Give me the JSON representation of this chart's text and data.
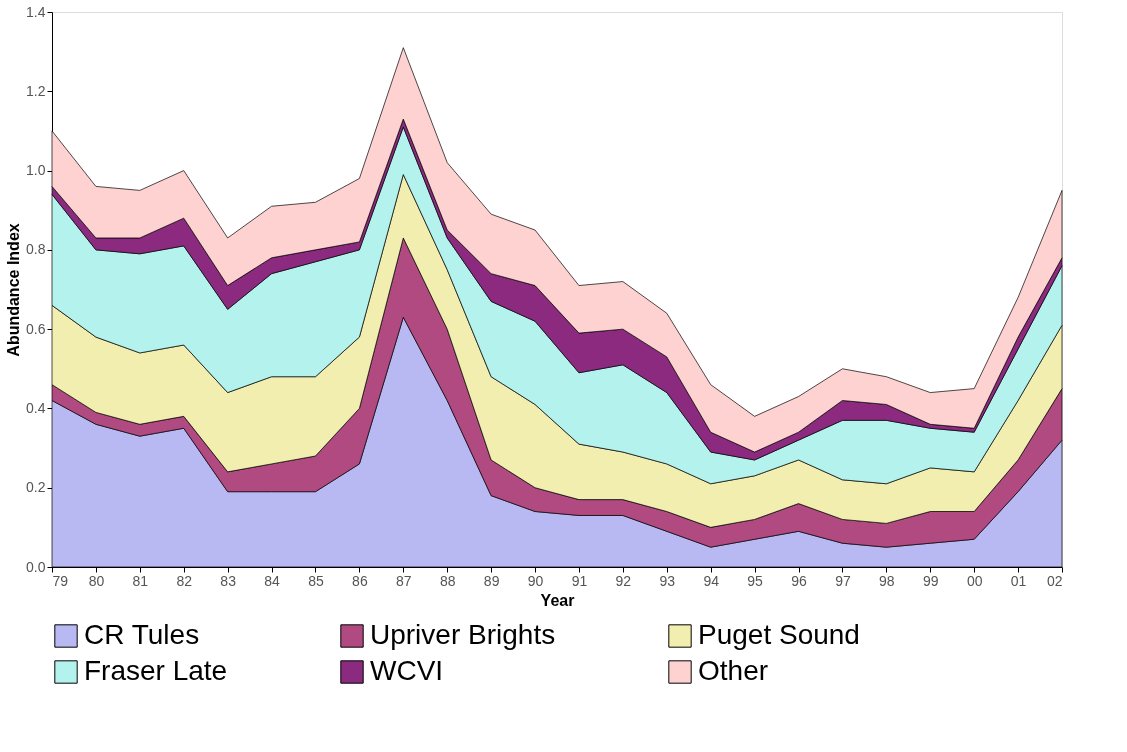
{
  "chart_data": {
    "type": "area",
    "stacked": true,
    "xlabel": "Year",
    "ylabel": "Abundance Index",
    "categories": [
      "79",
      "80",
      "81",
      "82",
      "83",
      "84",
      "85",
      "86",
      "87",
      "88",
      "89",
      "90",
      "91",
      "92",
      "93",
      "94",
      "95",
      "96",
      "97",
      "98",
      "99",
      "00",
      "01",
      "02"
    ],
    "ylim": [
      0,
      1.4
    ],
    "yticks": [
      {
        "value": 0,
        "label": "0.0"
      },
      {
        "value": 0.2,
        "label": "0.2"
      },
      {
        "value": 0.4,
        "label": "0.4"
      },
      {
        "value": 0.6,
        "label": "0.6"
      },
      {
        "value": 0.8,
        "label": "0.8"
      },
      {
        "value": 1.0,
        "label": "1.0"
      },
      {
        "value": 1.2,
        "label": "1.2"
      },
      {
        "value": 1.4,
        "label": "1.4"
      }
    ],
    "grid": false,
    "legend": "bottom",
    "series": [
      {
        "name": "CR Tules",
        "color": "#b8b8f2",
        "values": [
          0.42,
          0.36,
          0.33,
          0.35,
          0.19,
          0.19,
          0.19,
          0.26,
          0.63,
          0.42,
          0.18,
          0.14,
          0.13,
          0.13,
          0.09,
          0.05,
          0.07,
          0.09,
          0.06,
          0.05,
          0.06,
          0.07,
          0.19,
          0.32
        ]
      },
      {
        "name": "Upriver Brights",
        "color": "#b04a80",
        "values": [
          0.04,
          0.03,
          0.03,
          0.03,
          0.05,
          0.07,
          0.09,
          0.14,
          0.2,
          0.18,
          0.09,
          0.06,
          0.04,
          0.04,
          0.05,
          0.05,
          0.05,
          0.07,
          0.06,
          0.06,
          0.08,
          0.07,
          0.08,
          0.13
        ]
      },
      {
        "name": "Puget Sound",
        "color": "#f2eeb0",
        "values": [
          0.2,
          0.19,
          0.18,
          0.18,
          0.2,
          0.22,
          0.2,
          0.18,
          0.16,
          0.15,
          0.21,
          0.21,
          0.14,
          0.12,
          0.12,
          0.11,
          0.11,
          0.11,
          0.1,
          0.1,
          0.11,
          0.1,
          0.15,
          0.16
        ]
      },
      {
        "name": "Fraser Late",
        "color": "#b4f2ee",
        "values": [
          0.28,
          0.22,
          0.25,
          0.25,
          0.21,
          0.26,
          0.29,
          0.22,
          0.12,
          0.08,
          0.19,
          0.21,
          0.18,
          0.22,
          0.18,
          0.08,
          0.04,
          0.05,
          0.15,
          0.16,
          0.1,
          0.1,
          0.13,
          0.15
        ]
      },
      {
        "name": "WCVI",
        "color": "#8c2a80",
        "values": [
          0.02,
          0.03,
          0.04,
          0.07,
          0.06,
          0.04,
          0.03,
          0.02,
          0.02,
          0.02,
          0.07,
          0.09,
          0.1,
          0.09,
          0.09,
          0.05,
          0.02,
          0.02,
          0.05,
          0.04,
          0.01,
          0.01,
          0.03,
          0.02
        ]
      },
      {
        "name": "Other",
        "color": "#ffd2d2",
        "values": [
          0.14,
          0.13,
          0.12,
          0.12,
          0.12,
          0.13,
          0.12,
          0.16,
          0.18,
          0.17,
          0.15,
          0.14,
          0.12,
          0.12,
          0.11,
          0.12,
          0.09,
          0.09,
          0.08,
          0.07,
          0.08,
          0.1,
          0.1,
          0.17
        ]
      }
    ]
  }
}
